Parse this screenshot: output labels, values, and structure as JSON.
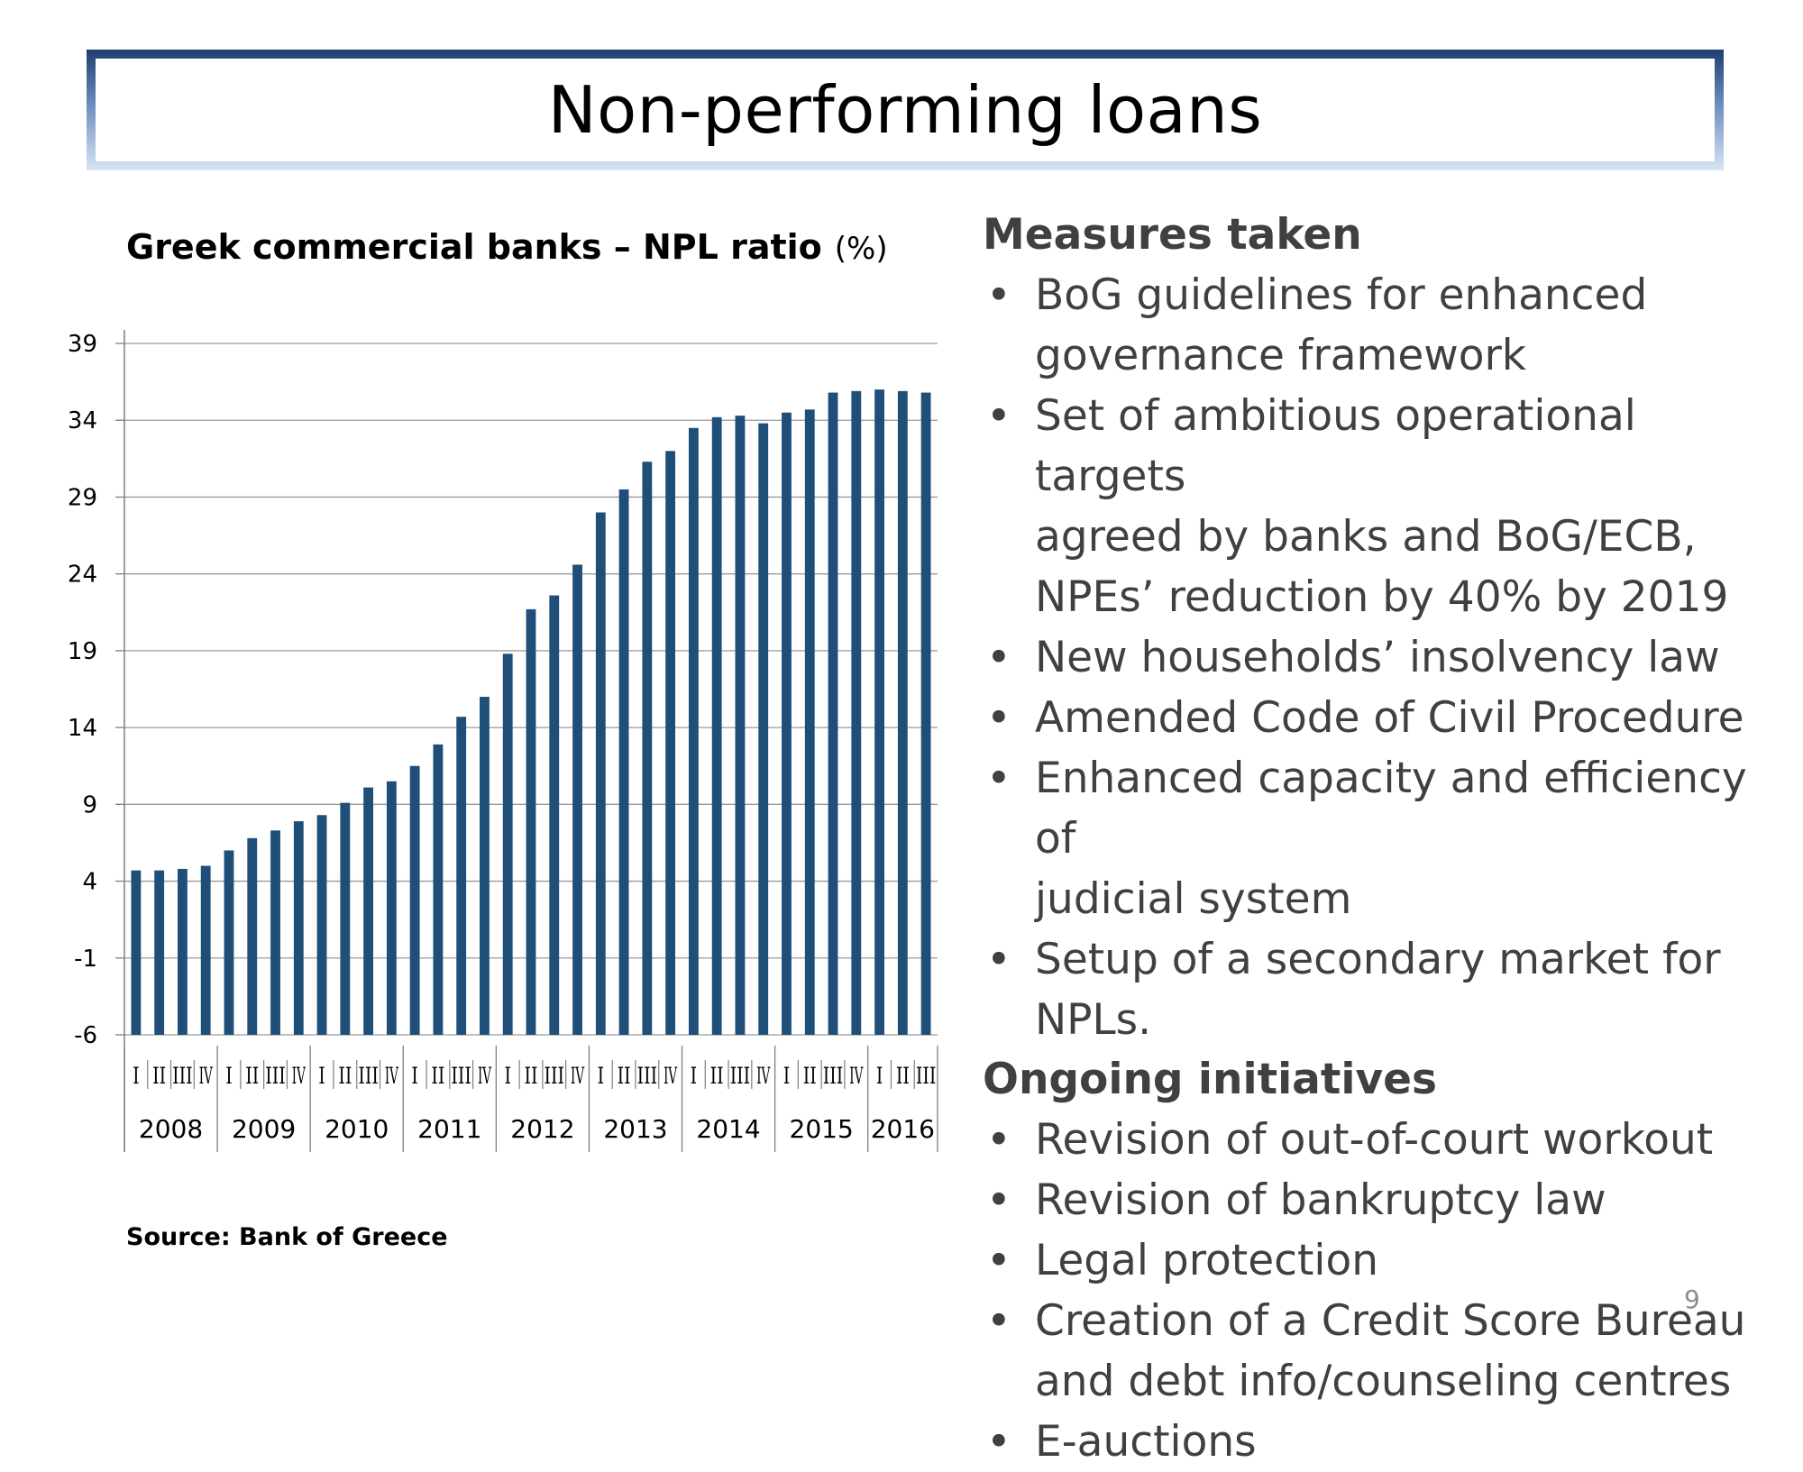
{
  "slide": {
    "title": "Non-performing loans",
    "page_number": "9"
  },
  "chart_data": {
    "type": "bar",
    "title": "Greek commercial banks – NPL ratio",
    "unit": "(%)",
    "source": "Source: Bank of Greece",
    "ylim": [
      -6,
      39
    ],
    "yticks": [
      39,
      34,
      29,
      24,
      19,
      14,
      9,
      4,
      -1,
      -6
    ],
    "grid": true,
    "color": "#1f4e79",
    "quarter_labels": [
      "I",
      "II",
      "III",
      "IV",
      "I",
      "II",
      "III",
      "IV",
      "I",
      "II",
      "III",
      "IV",
      "I",
      "II",
      "III",
      "IV",
      "I",
      "II",
      "III",
      "IV",
      "I",
      "II",
      "III",
      "IV",
      "I",
      "II",
      "III",
      "IV",
      "I",
      "II",
      "III",
      "IV",
      "I",
      "II",
      "III"
    ],
    "years": [
      {
        "label": "2008",
        "quarters": 4
      },
      {
        "label": "2009",
        "quarters": 4
      },
      {
        "label": "2010",
        "quarters": 4
      },
      {
        "label": "2011",
        "quarters": 4
      },
      {
        "label": "2012",
        "quarters": 4
      },
      {
        "label": "2013",
        "quarters": 4
      },
      {
        "label": "2014",
        "quarters": 4
      },
      {
        "label": "2015",
        "quarters": 4
      },
      {
        "label": "2016",
        "quarters": 3
      }
    ],
    "values": [
      4.7,
      4.7,
      4.8,
      5.0,
      6.0,
      6.8,
      7.3,
      7.9,
      8.3,
      9.1,
      10.1,
      10.5,
      11.5,
      12.9,
      14.7,
      16.0,
      18.8,
      21.7,
      22.6,
      24.6,
      28.0,
      29.5,
      31.3,
      32.0,
      33.5,
      34.2,
      34.3,
      33.8,
      34.5,
      34.7,
      35.8,
      35.9,
      36.0,
      35.9,
      35.8
    ]
  },
  "measures": {
    "heading": "Measures taken",
    "items": [
      [
        "BoG guidelines for enhanced",
        "governance framework"
      ],
      [
        "Set of ambitious operational targets",
        "agreed by banks and BoG/ECB,",
        "NPEs’ reduction by 40% by 2019"
      ],
      [
        "New households’ insolvency law"
      ],
      [
        "Amended Code of Civil Procedure"
      ],
      [
        "Enhanced capacity and efficiency of",
        "judicial system"
      ],
      [
        "Setup of a secondary market for",
        "NPLs."
      ]
    ]
  },
  "initiatives": {
    "heading": "Ongoing initiatives",
    "items": [
      [
        "Revision of out-of-court workout"
      ],
      [
        "Revision of bankruptcy law"
      ],
      [
        "Legal protection"
      ],
      [
        "Creation of a Credit Score Bureau",
        "and debt info/counseling centres"
      ],
      [
        "E-auctions"
      ]
    ]
  }
}
